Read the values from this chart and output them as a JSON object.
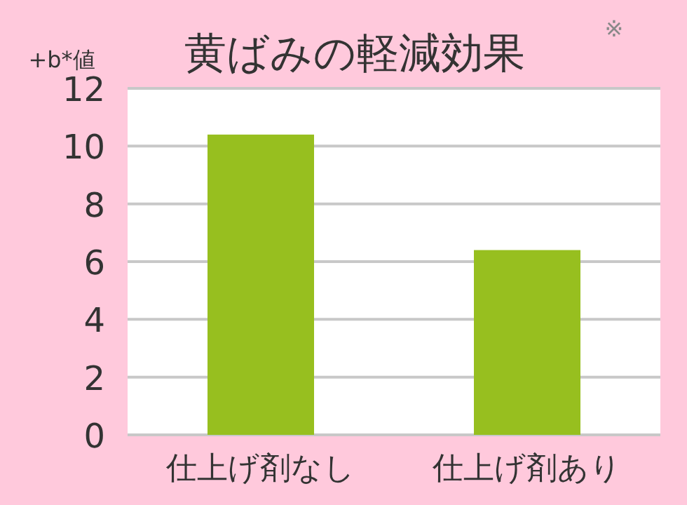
{
  "chart_data": {
    "type": "bar",
    "title": "黄ばみの軽減効果",
    "annotations": [
      "※"
    ],
    "ylabel": "+b*値",
    "categories": [
      "仕上げ剤なし",
      "仕上げ剤あり"
    ],
    "series": [
      {
        "color": "#97bf1f",
        "values": [
          10.4,
          6.4
        ]
      }
    ],
    "ylim": [
      0,
      12
    ],
    "yticks": [
      0,
      2,
      4,
      6,
      8,
      10,
      12
    ],
    "grid": "y"
  }
}
